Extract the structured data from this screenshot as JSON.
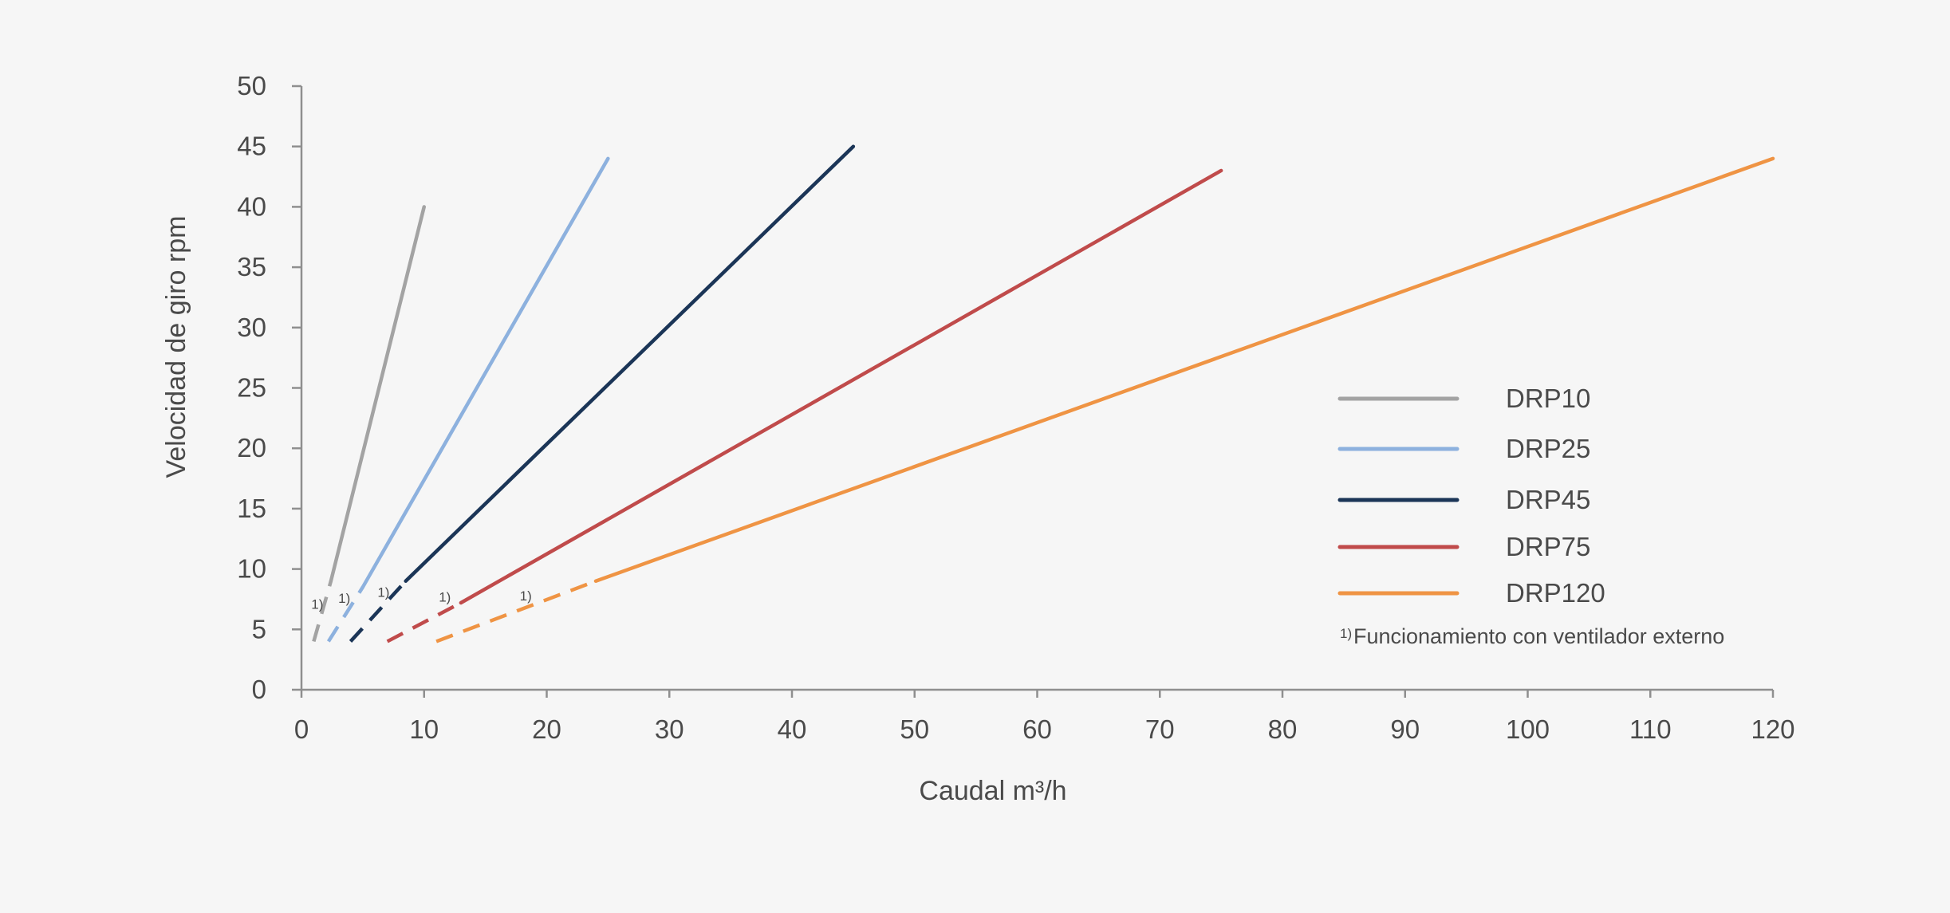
{
  "chart_data": {
    "type": "line",
    "xlabel": "Caudal m³/h",
    "ylabel": "Velocidad de giro rpm",
    "xlim": [
      0,
      120
    ],
    "ylim": [
      0,
      50
    ],
    "x_ticks": [
      0,
      10,
      20,
      30,
      40,
      50,
      60,
      70,
      80,
      90,
      100,
      110,
      120
    ],
    "y_ticks": [
      0,
      5,
      10,
      15,
      20,
      25,
      30,
      35,
      40,
      45,
      50
    ],
    "grid": false,
    "legend_position": "right",
    "series": [
      {
        "name": "DRP10",
        "color": "#a3a3a3",
        "dashed": [
          [
            1,
            4
          ],
          [
            2.4,
            9
          ]
        ],
        "solid": [
          [
            2.4,
            9
          ],
          [
            10,
            40
          ]
        ],
        "marker": {
          "text": "1)",
          "x": 0.8,
          "y": 6.7
        }
      },
      {
        "name": "DRP25",
        "color": "#8db1de",
        "dashed": [
          [
            2.2,
            4
          ],
          [
            5,
            8.5
          ]
        ],
        "solid": [
          [
            5,
            8.5
          ],
          [
            25,
            44
          ]
        ],
        "marker": {
          "text": "1)",
          "x": 3,
          "y": 7.2
        }
      },
      {
        "name": "DRP45",
        "color": "#1b3557",
        "dashed": [
          [
            4,
            4
          ],
          [
            8.5,
            9
          ]
        ],
        "solid": [
          [
            8.5,
            9
          ],
          [
            45,
            45
          ]
        ],
        "marker": {
          "text": "1)",
          "x": 6.2,
          "y": 7.7
        }
      },
      {
        "name": "DRP75",
        "color": "#c04b4b",
        "dashed": [
          [
            7,
            4
          ],
          [
            13,
            7.2
          ]
        ],
        "solid": [
          [
            13,
            7.2
          ],
          [
            75,
            43
          ]
        ],
        "marker": {
          "text": "1)",
          "x": 11.2,
          "y": 7.3
        }
      },
      {
        "name": "DRP120",
        "color": "#ef9444",
        "dashed": [
          [
            11,
            4
          ],
          [
            24,
            9
          ]
        ],
        "solid": [
          [
            24,
            9
          ],
          [
            120,
            44
          ]
        ],
        "marker": {
          "text": "1)",
          "x": 17.8,
          "y": 7.4
        }
      }
    ],
    "footnote": {
      "mark": "1)",
      "text": "Funcionamiento con ventilador externo"
    }
  }
}
